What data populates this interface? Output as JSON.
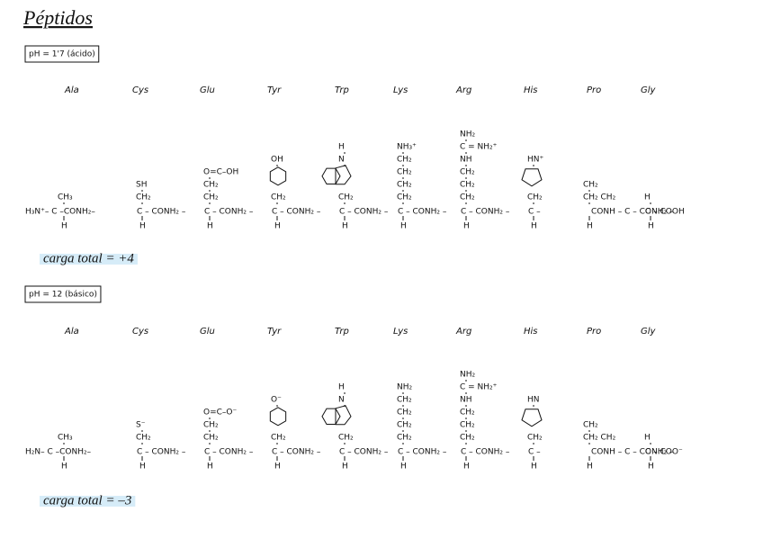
{
  "title": "Péptidos",
  "sections": [
    {
      "label": "pH = 1'7 (ácido)",
      "amino_acids": [
        "Ala",
        "Cys",
        "Glu",
        "Tyr",
        "Trp",
        "Lys",
        "Arg",
        "His",
        "Pro",
        "Gly"
      ],
      "side_chains": [
        [
          "CH₃"
        ],
        [
          "SH",
          "CH₂"
        ],
        [
          "O=C–OH",
          "CH₂",
          "CH₂"
        ],
        [
          "OH",
          "CH₂"
        ],
        [
          "H",
          "N",
          "CH₂"
        ],
        [
          "NH₃⁺",
          "CH₂",
          "CH₂",
          "CH₂",
          "CH₂"
        ],
        [
          "NH₂",
          "C = NH₂⁺",
          "NH",
          "CH₂",
          "CH₂",
          "CH₂"
        ],
        [
          "HN⁺",
          "CH₂"
        ],
        [
          "CH₂",
          "CH₂  CH₂"
        ],
        [
          "H"
        ]
      ],
      "backbone": [
        "H₃N⁺– C –CONH₂–",
        "C – CONH₂ –",
        "C – CONH₂ –",
        "C – CONH₂ –",
        "C – CONH₂ –",
        "C – CONH₂ –",
        "C – CONH₂ –",
        "C –",
        "CONH – C – CONH₂ –",
        "C – COOH"
      ],
      "alpha_h": [
        "H",
        "H",
        "H",
        "H",
        "H",
        "H",
        "H",
        "H",
        "H",
        "H"
      ],
      "total_charge": "carga total = +4"
    },
    {
      "label": "pH = 12 (básico)",
      "amino_acids": [
        "Ala",
        "Cys",
        "Glu",
        "Tyr",
        "Trp",
        "Lys",
        "Arg",
        "His",
        "Pro",
        "Gly"
      ],
      "side_chains": [
        [
          "CH₃"
        ],
        [
          "S⁻",
          "CH₂"
        ],
        [
          "O=C–O⁻",
          "CH₂",
          "CH₂"
        ],
        [
          "O⁻",
          "CH₂"
        ],
        [
          "H",
          "N",
          "CH₂"
        ],
        [
          "NH₂",
          "CH₂",
          "CH₂",
          "CH₂",
          "CH₂"
        ],
        [
          "NH₂",
          "C = NH₂⁺",
          "NH",
          "CH₂",
          "CH₂",
          "CH₂"
        ],
        [
          "HN",
          "CH₂"
        ],
        [
          "CH₂",
          "CH₂  CH₂"
        ],
        [
          "H"
        ]
      ],
      "backbone": [
        "H₂N– C –CONH₂–",
        "C – CONH₂ –",
        "C – CONH₂ –",
        "C – CONH₂ –",
        "C – CONH₂ –",
        "C – CONH₂ –",
        "C – CONH₂ –",
        "C –",
        "CONH – C – CONH₂ –",
        "C – COO⁻"
      ],
      "alpha_h": [
        "H",
        "H",
        "H",
        "H",
        "H",
        "H",
        "H",
        "H",
        "H",
        "H"
      ],
      "total_charge": "carga total = –3"
    }
  ]
}
